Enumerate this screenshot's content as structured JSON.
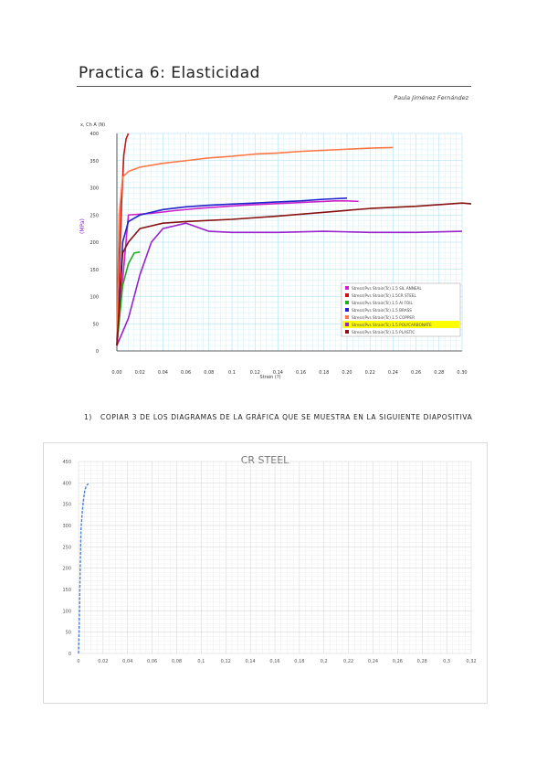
{
  "header": {
    "title": "Practica 6: Elasticidad",
    "author": "Paula Jiménez Fernández"
  },
  "chart1": {
    "chart_data": {
      "type": "line",
      "y_axis_top_label": "x, Ch A (N)",
      "ylabel": "(MPa)",
      "xlabel": "Strain (?)",
      "xlim": [
        0,
        0.3
      ],
      "ylim": [
        0,
        400
      ],
      "x_ticks": [
        "0.00",
        "0.02",
        "0.04",
        "0.06",
        "0.08",
        "0.1",
        "0.12",
        "0.14",
        "0.16",
        "0.18",
        "0.20",
        "0.22",
        "0.24",
        "0.26",
        "0.28",
        "0.30"
      ],
      "y_ticks": [
        "0",
        "50",
        "100",
        "150",
        "200",
        "250",
        "300",
        "350",
        "400"
      ],
      "grid": true,
      "legend_position": "bottom-right",
      "series": [
        {
          "name": "Stress(Pvs Strain(Tc) 1.5 SIL ANNEAL",
          "color": "#cc22cc",
          "marker": "x",
          "x": [
            0.0,
            0.01,
            0.03,
            0.05,
            0.07,
            0.09,
            0.11,
            0.13,
            0.15,
            0.17,
            0.19,
            0.2,
            0.21
          ],
          "y": [
            10,
            250,
            253,
            258,
            262,
            265,
            268,
            270,
            272,
            274,
            276,
            276,
            275
          ]
        },
        {
          "name": "Stress(Pvs Strain(Tc) 1.5CR STEEL",
          "color": "#cc1111",
          "marker": "circle",
          "x": [
            0.0,
            0.002,
            0.004,
            0.006,
            0.008,
            0.01
          ],
          "y": [
            20,
            150,
            270,
            360,
            390,
            400
          ]
        },
        {
          "name": "Stress(Pvs Strain(Tc) 1.5 Al FOIL",
          "color": "#22aa22",
          "marker": "circle",
          "x": [
            0.0,
            0.005,
            0.01,
            0.015,
            0.02
          ],
          "y": [
            10,
            120,
            160,
            180,
            182
          ]
        },
        {
          "name": "Stress(Pvs Strain(Tc) 1.5 BRASS",
          "color": "#2222cc",
          "marker": "plus",
          "x": [
            0.0,
            0.005,
            0.01,
            0.02,
            0.04,
            0.06,
            0.08,
            0.1,
            0.12,
            0.14,
            0.16,
            0.18,
            0.2
          ],
          "y": [
            10,
            200,
            238,
            250,
            260,
            265,
            268,
            270,
            272,
            274,
            276,
            279,
            281
          ]
        },
        {
          "name": "Stress(Pvs Strain(Tc) 1.5 COPPER",
          "color": "#ff7744",
          "marker": "diamond",
          "x": [
            0.0,
            0.002,
            0.005,
            0.01,
            0.02,
            0.04,
            0.06,
            0.08,
            0.1,
            0.12,
            0.14,
            0.16,
            0.18,
            0.2,
            0.22,
            0.24
          ],
          "y": [
            10,
            250,
            320,
            330,
            338,
            345,
            350,
            355,
            358,
            362,
            364,
            367,
            369,
            371,
            373,
            374
          ]
        },
        {
          "name": "Stress(Pvs Strain(Tc) 1.5 POLYCARBONATE",
          "color": "#9922cc",
          "marker": "triangle",
          "x": [
            0.0,
            0.01,
            0.02,
            0.03,
            0.04,
            0.06,
            0.08,
            0.1,
            0.14,
            0.18,
            0.22,
            0.26,
            0.3
          ],
          "y": [
            10,
            60,
            140,
            200,
            225,
            235,
            220,
            218,
            218,
            220,
            218,
            218,
            220
          ]
        },
        {
          "name": "Stress(Pvs Strain(Tc) 1.5 PLASTIC",
          "color": "#881111",
          "marker": "diamond",
          "x": [
            0.0,
            0.005,
            0.01,
            0.02,
            0.04,
            0.06,
            0.08,
            0.1,
            0.14,
            0.18,
            0.22,
            0.26,
            0.3,
            0.31
          ],
          "y": [
            10,
            180,
            200,
            225,
            235,
            238,
            240,
            242,
            248,
            255,
            262,
            266,
            272,
            270
          ]
        }
      ]
    }
  },
  "question": {
    "number": "1)",
    "text": "Copiar 3 de los diagramas de la gráfica que se muestra en la siguiente diapositiva"
  },
  "chart2": {
    "chart_data": {
      "type": "line",
      "title": "CR STEEL",
      "xlim": [
        0,
        0.32
      ],
      "ylim": [
        0,
        450
      ],
      "x_ticks": [
        "0",
        "0,02",
        "0,04",
        "0,06",
        "0,08",
        "0,1",
        "0,12",
        "0,14",
        "0,16",
        "0,18",
        "0,2",
        "0,22",
        "0,24",
        "0,26",
        "0,28",
        "0,3",
        "0,32"
      ],
      "y_ticks": [
        "0",
        "50",
        "100",
        "150",
        "200",
        "250",
        "300",
        "350",
        "400",
        "450"
      ],
      "grid": true,
      "series": [
        {
          "name": "",
          "color": "#4a7fd6",
          "x": [
            0.0,
            0.0005,
            0.001,
            0.0015,
            0.002,
            0.003,
            0.004,
            0.005,
            0.006,
            0.007,
            0.008
          ],
          "y": [
            0,
            60,
            140,
            220,
            290,
            330,
            360,
            380,
            390,
            395,
            398
          ]
        }
      ]
    }
  }
}
